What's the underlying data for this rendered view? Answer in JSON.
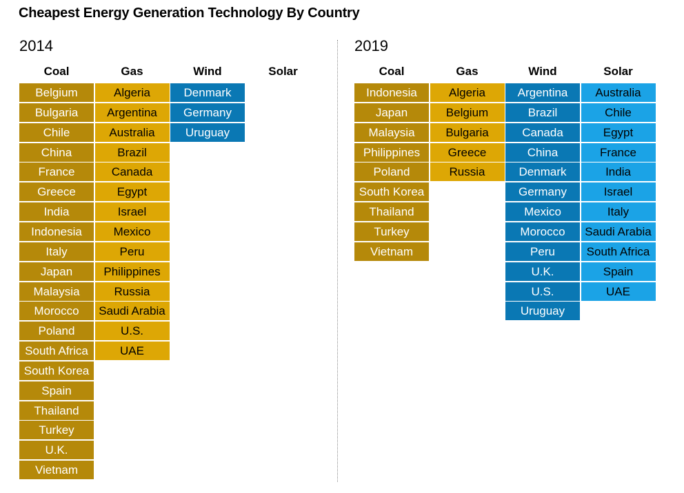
{
  "title": "Cheapest Energy Generation Technology By Country",
  "colors": {
    "coal": "#b5890a",
    "gas": "#dda705",
    "wind": "#0a78b4",
    "solar": "#1ba3e6"
  },
  "chart_data": {
    "type": "table",
    "title": "Cheapest Energy Generation Technology By Country",
    "categories": [
      "Coal",
      "Gas",
      "Wind",
      "Solar"
    ],
    "panels": [
      {
        "year": "2014",
        "columns": {
          "coal": [
            "Belgium",
            "Bulgaria",
            "Chile",
            "China",
            "France",
            "Greece",
            "India",
            "Indonesia",
            "Italy",
            "Japan",
            "Malaysia",
            "Morocco",
            "Poland",
            "South Africa",
            "South Korea",
            "Spain",
            "Thailand",
            "Turkey",
            "U.K.",
            "Vietnam"
          ],
          "gas": [
            "Algeria",
            "Argentina",
            "Australia",
            "Brazil",
            "Canada",
            "Egypt",
            "Israel",
            "Mexico",
            "Peru",
            "Philippines",
            "Russia",
            "Saudi Arabia",
            "U.S.",
            "UAE"
          ],
          "wind": [
            "Denmark",
            "Germany",
            "Uruguay"
          ],
          "solar": []
        }
      },
      {
        "year": "2019",
        "columns": {
          "coal": [
            "Indonesia",
            "Japan",
            "Malaysia",
            "Philippines",
            "Poland",
            "South Korea",
            "Thailand",
            "Turkey",
            "Vietnam"
          ],
          "gas": [
            "Algeria",
            "Belgium",
            "Bulgaria",
            "Greece",
            "Russia"
          ],
          "wind": [
            "Argentina",
            "Brazil",
            "Canada",
            "China",
            "Denmark",
            "Germany",
            "Mexico",
            "Morocco",
            "Peru",
            "U.K.",
            "U.S.",
            "Uruguay"
          ],
          "solar": [
            "Australia",
            "Chile",
            "Egypt",
            "France",
            "India",
            "Israel",
            "Italy",
            "Saudi Arabia",
            "South Africa",
            "Spain",
            "UAE"
          ]
        }
      }
    ]
  }
}
